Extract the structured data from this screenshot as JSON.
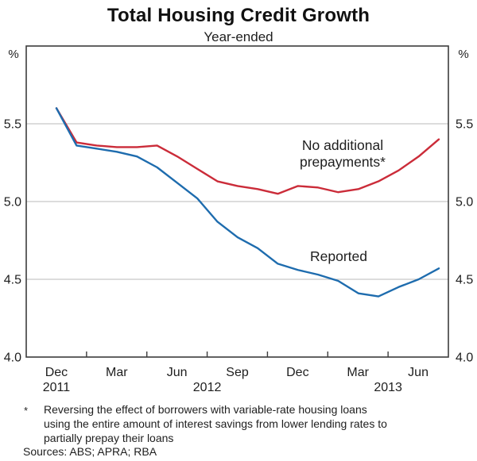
{
  "chart_data": {
    "type": "line",
    "title": "Total Housing Credit Growth",
    "subtitle": "Year-ended",
    "unit_left": "%",
    "unit_right": "%",
    "ylim": [
      4.0,
      6.0
    ],
    "ytick_values": [
      5.5,
      5.0,
      4.5,
      4.0
    ],
    "ytick_labels": [
      "5.5",
      "5.0",
      "4.5",
      "4.0"
    ],
    "gridline_values": [
      5.5,
      5.0,
      4.5
    ],
    "grid": true,
    "legend_position": "inline-annotations",
    "x": [
      "Dec 2011",
      "Jan 2012",
      "Feb 2012",
      "Mar 2012",
      "Apr 2012",
      "May 2012",
      "Jun 2012",
      "Jul 2012",
      "Aug 2012",
      "Sep 2012",
      "Oct 2012",
      "Nov 2012",
      "Dec 2012",
      "Jan 2013",
      "Feb 2013",
      "Mar 2013",
      "Apr 2013",
      "May 2013",
      "Jun 2013",
      "Jul 2013"
    ],
    "x_axis": {
      "quarter_labels": [
        "Dec",
        "Mar",
        "Jun",
        "Sep",
        "Dec",
        "Mar",
        "Jun"
      ],
      "year_labels": [
        "2011",
        "2012",
        "2013"
      ]
    },
    "series": [
      {
        "name": "No additional prepayments*",
        "label_lines": [
          "No additional",
          "prepayments*"
        ],
        "color": "#cb2c39",
        "values": [
          5.6,
          5.38,
          5.36,
          5.35,
          5.35,
          5.36,
          5.29,
          5.21,
          5.13,
          5.1,
          5.08,
          5.05,
          5.1,
          5.09,
          5.06,
          5.08,
          5.13,
          5.2,
          5.29,
          5.4
        ]
      },
      {
        "name": "Reported",
        "label_lines": [
          "Reported"
        ],
        "color": "#1e6cae",
        "values": [
          5.6,
          5.36,
          5.34,
          5.32,
          5.29,
          5.22,
          5.12,
          5.02,
          4.87,
          4.77,
          4.7,
          4.6,
          4.56,
          4.53,
          4.49,
          4.41,
          4.39,
          4.45,
          4.5,
          4.57
        ]
      }
    ]
  },
  "footnote": {
    "marker": "*",
    "lines": [
      "Reversing the effect of borrowers with variable-rate housing loans",
      "using the entire amount of interest savings from lower lending rates to",
      "partially prepay their loans"
    ],
    "sources": "Sources: ABS; APRA; RBA"
  },
  "colors": {
    "axis": "#3c3c3c",
    "grid": "#c8c8c8",
    "text": "#1e1e1e"
  }
}
